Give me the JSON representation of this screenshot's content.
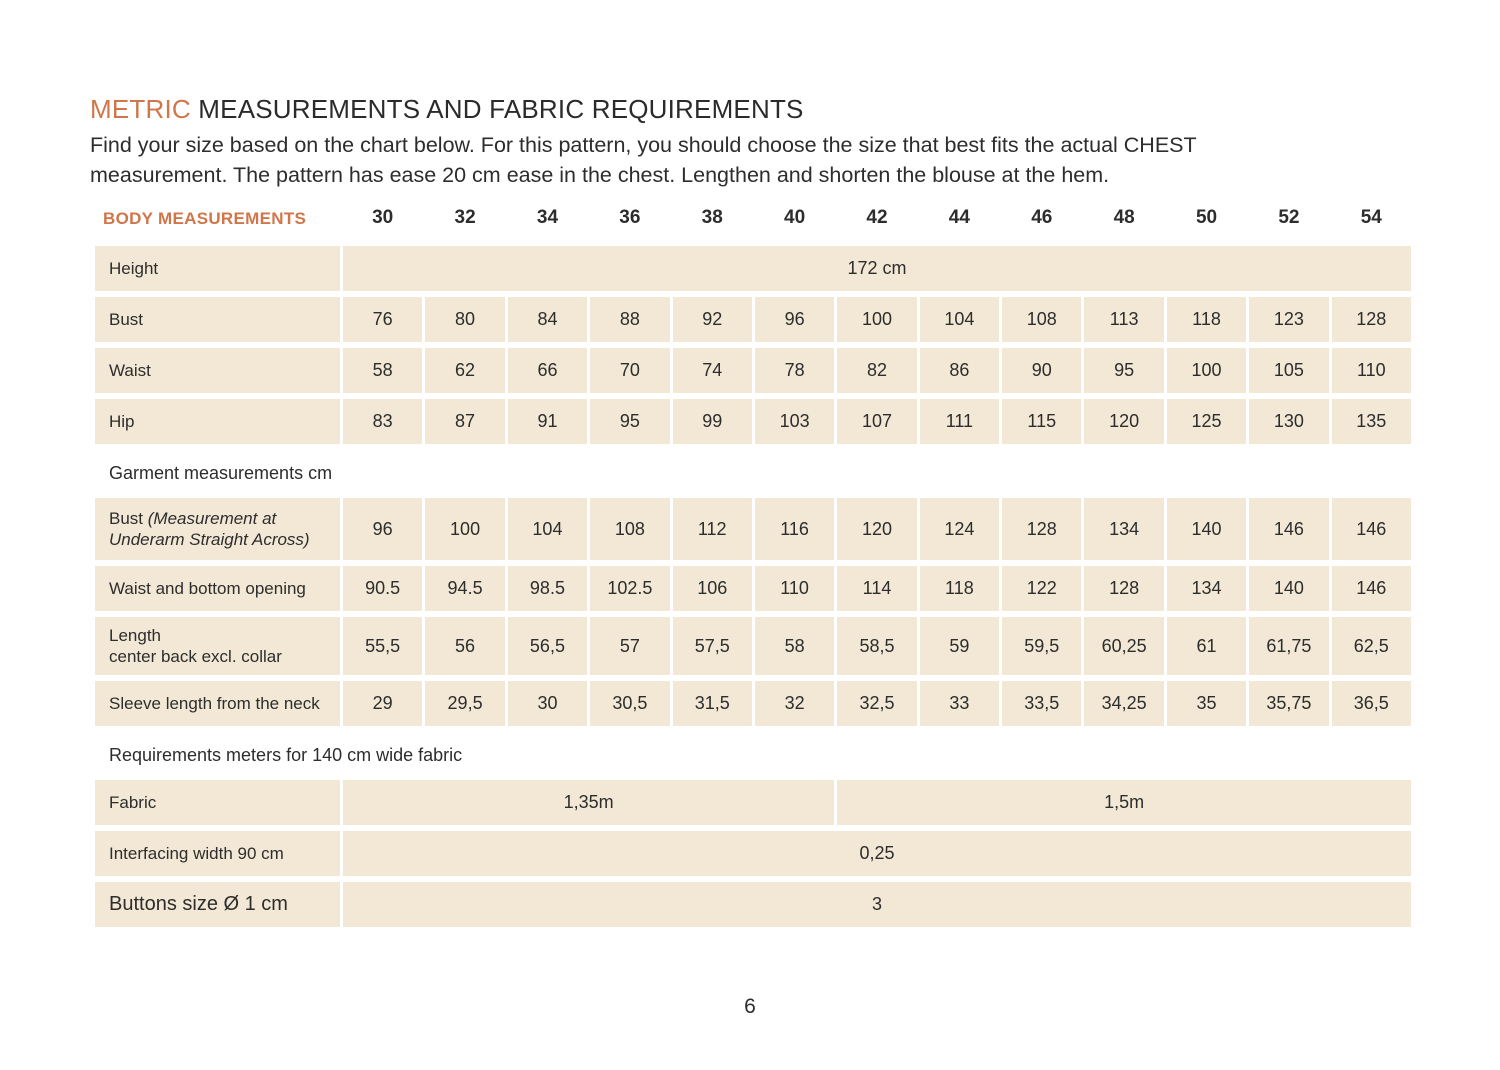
{
  "colors": {
    "accent_orange": "#d0764a",
    "cell_beige": "#f2e8d5",
    "text_dark": "#2d2d2d"
  },
  "header": {
    "title_accent": "METRIC",
    "title_rest": "MEASUREMENTS AND FABRIC REQUIREMENTS",
    "intro_line1": "Find your size based on the chart below. For this pattern, you should choose the size that best fits the actual CHEST",
    "intro_line2": "measurement. The pattern has ease 20 cm ease in the chest. Lengthen and shorten the blouse at the hem."
  },
  "table": {
    "header_label": "BODY MEASUREMENTS",
    "sizes": [
      "30",
      "32",
      "34",
      "36",
      "38",
      "40",
      "42",
      "44",
      "46",
      "48",
      "50",
      "52",
      "54"
    ],
    "body": {
      "height": {
        "label": "Height",
        "value": "172 cm"
      },
      "bust": {
        "label": "Bust",
        "values": [
          "76",
          "80",
          "84",
          "88",
          "92",
          "96",
          "100",
          "104",
          "108",
          "113",
          "118",
          "123",
          "128"
        ]
      },
      "waist": {
        "label": "Waist",
        "values": [
          "58",
          "62",
          "66",
          "70",
          "74",
          "78",
          "82",
          "86",
          "90",
          "95",
          "100",
          "105",
          "110"
        ]
      },
      "hip": {
        "label": "Hip",
        "values": [
          "83",
          "87",
          "91",
          "95",
          "99",
          "103",
          "107",
          "111",
          "115",
          "120",
          "125",
          "130",
          "135"
        ]
      }
    },
    "garment": {
      "section_label": "Garment measurements cm",
      "bust": {
        "label_prefix": "Bust",
        "label_italic": "(Measurement at Underarm Straight Across)",
        "values": [
          "96",
          "100",
          "104",
          "108",
          "112",
          "116",
          "120",
          "124",
          "128",
          "134",
          "140",
          "146",
          "146"
        ]
      },
      "waist_opening": {
        "label": "Waist and bottom opening",
        "values": [
          "90.5",
          "94.5",
          "98.5",
          "102.5",
          "106",
          "110",
          "114",
          "118",
          "122",
          "128",
          "134",
          "140",
          "146"
        ]
      },
      "length": {
        "label_line1": "Length",
        "label_line2": "center back excl. collar",
        "values": [
          "55,5",
          "56",
          "56,5",
          "57",
          "57,5",
          "58",
          "58,5",
          "59",
          "59,5",
          "60,25",
          "61",
          "61,75",
          "62,5"
        ]
      },
      "sleeve": {
        "label": "Sleeve length from the neck",
        "values": [
          "29",
          "29,5",
          "30",
          "30,5",
          "31,5",
          "32",
          "32,5",
          "33",
          "33,5",
          "34,25",
          "35",
          "35,75",
          "36,5"
        ]
      }
    },
    "requirements": {
      "section_label": "Requirements meters for 140 cm wide fabric",
      "fabric": {
        "label": "Fabric",
        "value_sizes_30_40": "1,35m",
        "value_sizes_42_54": "1,5m"
      },
      "interfacing": {
        "label": "Interfacing width 90 cm",
        "value": "0,25"
      },
      "buttons": {
        "label": "Buttons size Ø 1 cm",
        "value": "3"
      }
    }
  },
  "footer": {
    "page_number": "6"
  }
}
